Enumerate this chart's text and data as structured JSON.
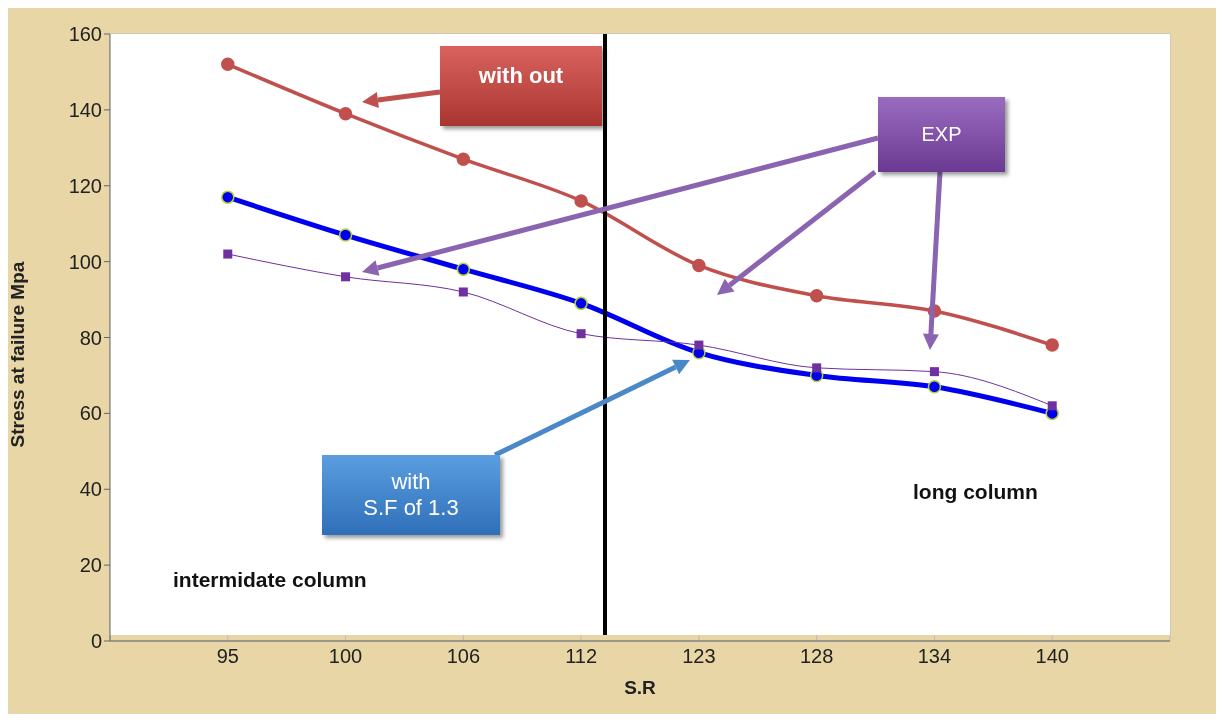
{
  "chart_data": {
    "type": "line",
    "xlabel": "S.R",
    "ylabel": "Stress at failure Mpa",
    "categories": [
      "95",
      "100",
      "106",
      "112",
      "123",
      "128",
      "134",
      "140"
    ],
    "series": [
      {
        "color": "#c0504d",
        "values": [
          152,
          139,
          127,
          116,
          99,
          91,
          87,
          78
        ],
        "marker": "circle"
      },
      {
        "color": "#0000ee",
        "values": [
          117,
          107,
          98,
          89,
          76,
          70,
          67,
          60
        ],
        "marker": "circle"
      },
      {
        "color": "#7030a0",
        "values": [
          102,
          96,
          92,
          81,
          78,
          72,
          71,
          62
        ],
        "marker": "square"
      }
    ],
    "ylim": [
      0,
      160
    ],
    "yticks": [
      0,
      20,
      40,
      60,
      80,
      100,
      120,
      140,
      160
    ],
    "grid": true,
    "annotations": [
      "with out",
      "EXP",
      "with\nS.F of 1.3",
      "long column",
      "intermidate column"
    ]
  }
}
